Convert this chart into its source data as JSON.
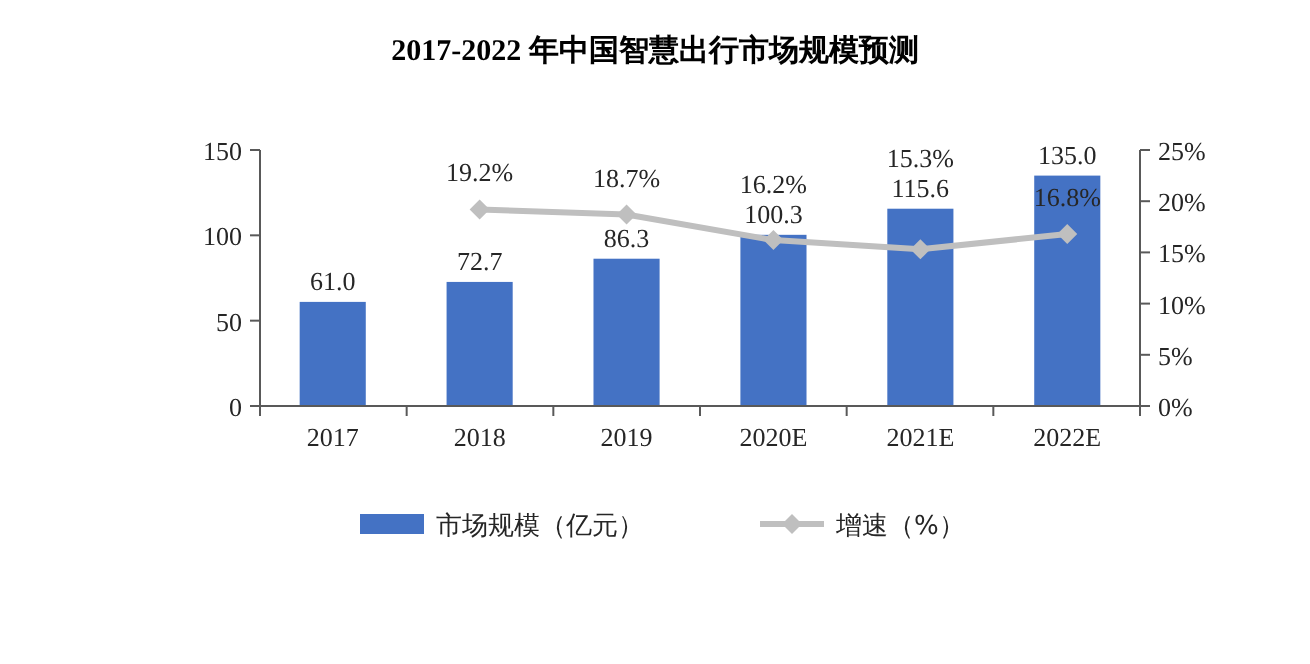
{
  "chart_data": {
    "type": "bar",
    "title": "2017-2022 年中国智慧出行市场规模预测",
    "categories": [
      "2017",
      "2018",
      "2019",
      "2020E",
      "2021E",
      "2022E"
    ],
    "series": [
      {
        "name": "市场规模（亿元）",
        "color": "#4472c4",
        "values": [
          61.0,
          72.7,
          86.3,
          100.3,
          115.6,
          135.0
        ],
        "value_labels": [
          "61.0",
          "72.7",
          "86.3",
          "100.3",
          "115.6",
          "135.0"
        ]
      },
      {
        "name": "增速（%）",
        "type": "line",
        "axis": "y2",
        "color": "#bfbfbf",
        "marker": "diamond",
        "values": [
          null,
          19.2,
          18.7,
          16.2,
          15.3,
          16.8
        ],
        "value_labels": [
          null,
          "19.2%",
          "18.7%",
          "16.2%",
          "15.3%",
          "16.8%"
        ]
      }
    ],
    "ylim": [
      0,
      150
    ],
    "yticks": [
      0,
      50,
      100,
      150
    ],
    "y2lim": [
      0,
      25
    ],
    "y2ticks": [
      {
        "value": 0,
        "label": "0%"
      },
      {
        "value": 5,
        "label": "5%"
      },
      {
        "value": 10,
        "label": "10%"
      },
      {
        "value": 15,
        "label": "15%"
      },
      {
        "value": 20,
        "label": "20%"
      },
      {
        "value": 25,
        "label": "25%"
      }
    ],
    "grid": false,
    "legend": "bottom"
  }
}
